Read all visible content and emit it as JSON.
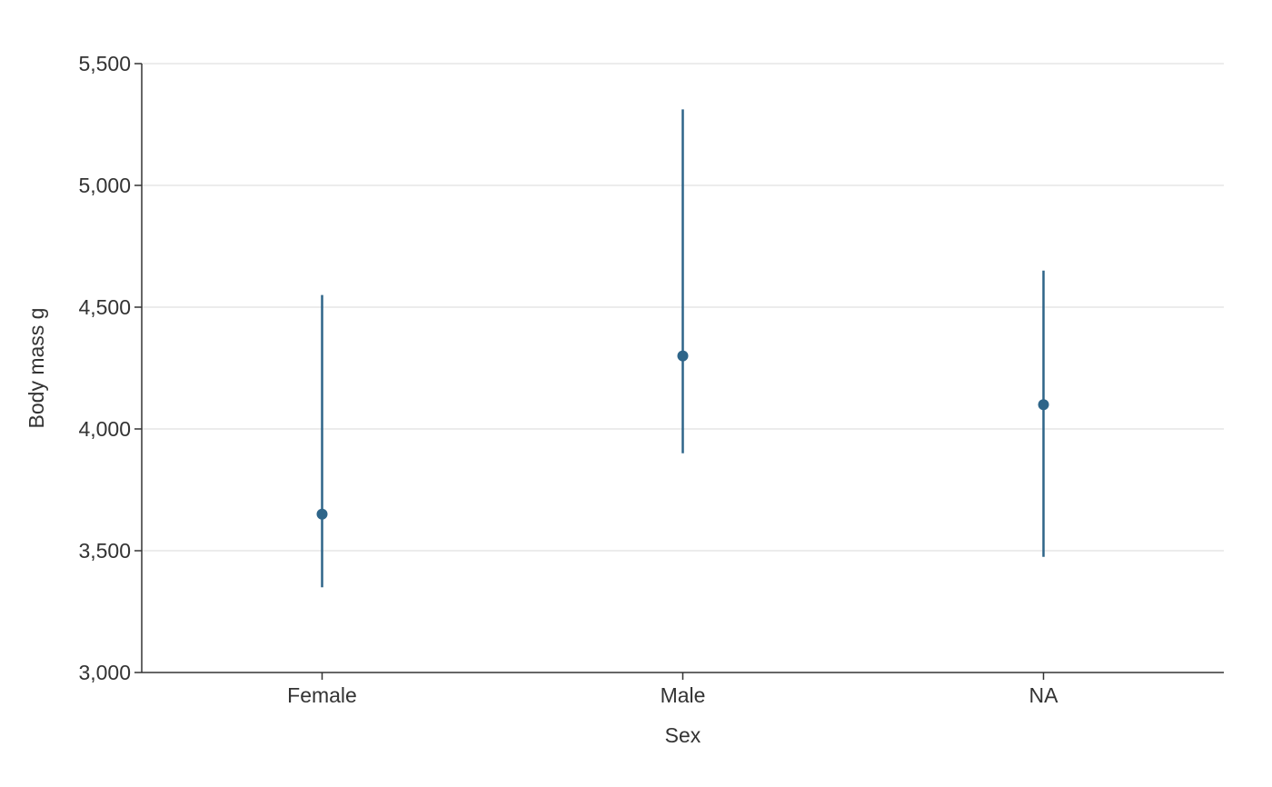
{
  "chart_data": {
    "type": "scatter",
    "subtype": "point-range",
    "xlabel": "Sex",
    "ylabel": "Body mass g",
    "categories": [
      "Female",
      "Male",
      "NA"
    ],
    "series": [
      {
        "values": [
          3650,
          4300,
          4100
        ],
        "lower": [
          3350,
          3900,
          3475
        ],
        "upper": [
          4550,
          5312,
          4650
        ]
      }
    ],
    "ylim": [
      3000,
      5500
    ],
    "yticks": [
      3000,
      3500,
      4000,
      4500,
      5000,
      5500
    ],
    "ytick_labels": [
      "3,000",
      "3,500",
      "4,000",
      "4,500",
      "5,000",
      "5,500"
    ],
    "grid": "horizontal",
    "legend": "none",
    "color": "#2e6589"
  }
}
